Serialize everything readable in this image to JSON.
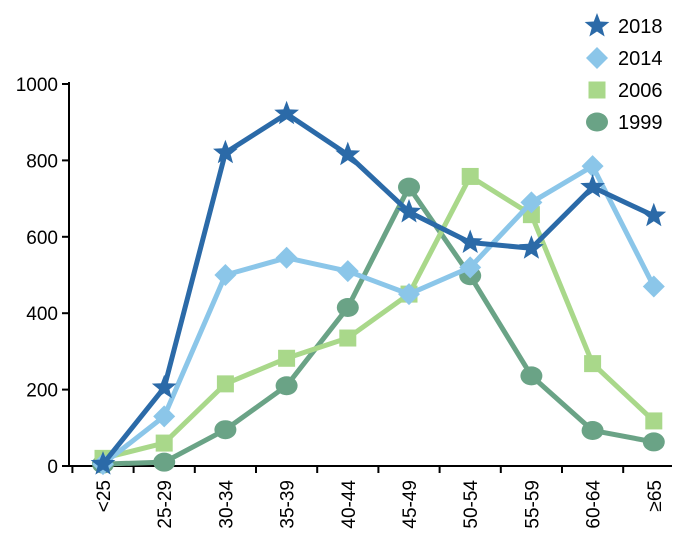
{
  "chart_data": {
    "type": "line",
    "title": "",
    "xlabel": "",
    "ylabel": "",
    "categories": [
      "<25",
      "25-29",
      "30-34",
      "35-39",
      "40-44",
      "45-49",
      "50-54",
      "55-59",
      "60-64",
      "≥65"
    ],
    "yticks": [
      "0",
      "200",
      "400",
      "600",
      "800",
      "1000"
    ],
    "ylim": [
      0,
      1000
    ],
    "grid": false,
    "legend_position": "top-right",
    "series": [
      {
        "name": "2018",
        "marker": "star",
        "color": "#2b6aa8",
        "values": [
          5,
          205,
          820,
          922,
          815,
          665,
          585,
          570,
          730,
          655
        ]
      },
      {
        "name": "2014",
        "marker": "diamond",
        "color": "#8bc6e9",
        "values": [
          5,
          130,
          500,
          545,
          510,
          450,
          520,
          690,
          785,
          470
        ]
      },
      {
        "name": "2006",
        "marker": "square",
        "color": "#a9d88a",
        "values": [
          20,
          60,
          215,
          282,
          335,
          450,
          758,
          658,
          268,
          118
        ]
      },
      {
        "name": "1999",
        "marker": "circle",
        "color": "#6aa386",
        "values": [
          5,
          10,
          95,
          210,
          415,
          730,
          498,
          236,
          93,
          63
        ]
      }
    ]
  }
}
